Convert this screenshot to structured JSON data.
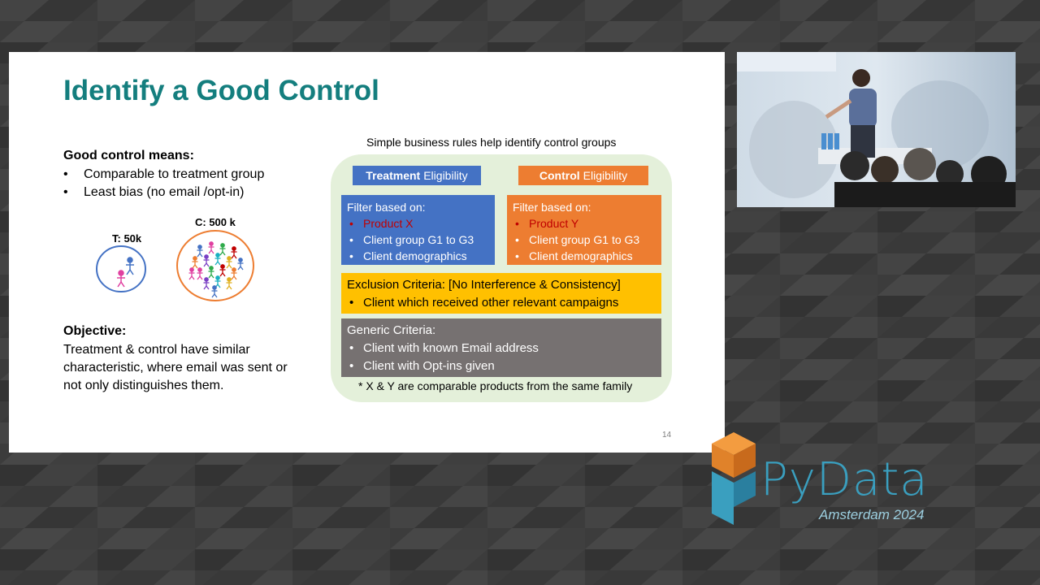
{
  "slide": {
    "title": "Identify a Good Control",
    "good_control": {
      "heading": "Good control means:",
      "bullets": [
        "Comparable to treatment group",
        "Least bias (no email /opt-in)"
      ]
    },
    "groups": {
      "treatment_label": "T: 50k",
      "control_label": "C: 500 k"
    },
    "objective": {
      "heading": "Objective:",
      "text": "Treatment & control have similar characteristic, where email was sent or not only distinguishes them."
    },
    "diagram": {
      "title": "Simple business rules help identify control groups",
      "treatment_header": {
        "bold": "Treatment",
        "rest": "Eligibility"
      },
      "control_header": {
        "bold": "Control",
        "rest": "Eligibility"
      },
      "treatment_filter": {
        "heading": "Filter based on:",
        "items": [
          "Product X",
          "Client group G1 to G3",
          "Client demographics"
        ]
      },
      "control_filter": {
        "heading": "Filter based on:",
        "items": [
          "Product Y",
          "Client group G1 to G3",
          "Client demographics"
        ]
      },
      "exclusion": {
        "heading": "Exclusion Criteria: [No Interference & Consistency]",
        "items": [
          "Client which received other relevant campaigns"
        ]
      },
      "generic": {
        "heading": "Generic Criteria:",
        "items": [
          "Client with known Email address",
          "Client with Opt-ins given"
        ]
      },
      "footnote": "* X & Y are comparable products from the same family"
    },
    "page_number": "14"
  },
  "branding": {
    "name": "PyData",
    "event": "Amsterdam 2024"
  },
  "colors": {
    "title": "#147e7e",
    "treatment_blue": "#4472c4",
    "control_orange": "#ed7d31",
    "exclusion_yellow": "#ffc000",
    "generic_gray": "#767171",
    "panel_green": "#e4f0da",
    "highlight_red": "#c00000"
  }
}
